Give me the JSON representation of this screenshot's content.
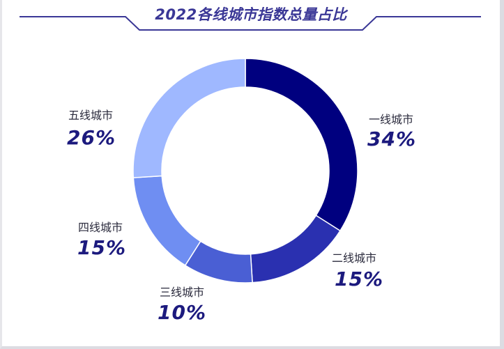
{
  "title": "2022各线城市指数总量占比",
  "chart_data": {
    "type": "pie",
    "title": "2022各线城市指数总量占比",
    "categories": [
      "一线城市",
      "二线城市",
      "三线城市",
      "四线城市",
      "五线城市"
    ],
    "values": [
      34,
      15,
      10,
      15,
      26
    ],
    "value_labels": [
      "34%",
      "15%",
      "10%",
      "15%",
      "26%"
    ],
    "colors": [
      "#00007f",
      "#2a30b0",
      "#4a5fd4",
      "#6f8ef2",
      "#9fb8ff"
    ],
    "legend": "none"
  }
}
